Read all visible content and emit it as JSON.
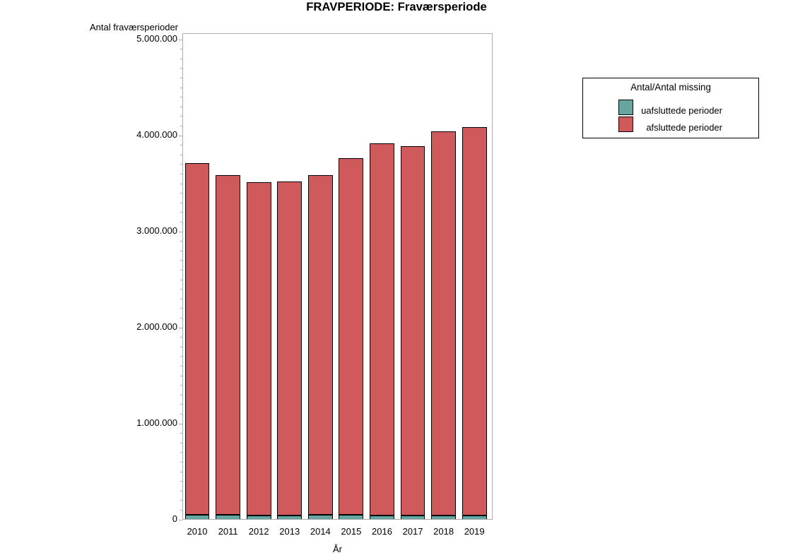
{
  "chart_data": {
    "type": "bar",
    "stacked": true,
    "title": "FRAVPERIODE: Fraværsperiode",
    "xlabel": "År",
    "ylabel": "Antal fraværsperioder",
    "categories": [
      "2010",
      "2011",
      "2012",
      "2013",
      "2014",
      "2015",
      "2016",
      "2017",
      "2018",
      "2019"
    ],
    "series": [
      {
        "name": "uafsluttede perioder",
        "color": "#66A6A0",
        "values": [
          46000,
          41000,
          35000,
          35000,
          41000,
          43000,
          40000,
          35000,
          38000,
          38000
        ]
      },
      {
        "name": "afsluttede perioder",
        "color": "#CF5A5C",
        "values": [
          3658000,
          3544000,
          3471000,
          3480000,
          3541000,
          3714000,
          3870000,
          3851000,
          3999000,
          4043000
        ]
      }
    ],
    "ylim": [
      0,
      5000000
    ],
    "ytick_values": [
      0,
      1000000,
      2000000,
      3000000,
      4000000,
      5000000
    ],
    "ytick_labels": [
      "0",
      "1.000.000",
      "2.000.000",
      "3.000.000",
      "4.000.000",
      "5.000.000"
    ],
    "minor_tick_step": 100000,
    "grid": false,
    "legend": {
      "title": "Antal/Antal missing",
      "position": "right"
    },
    "colors": {
      "bar_outline": "#000000",
      "axis_frame": "#AAACAE",
      "text": "#000000",
      "background": "#FFFFFF"
    }
  }
}
